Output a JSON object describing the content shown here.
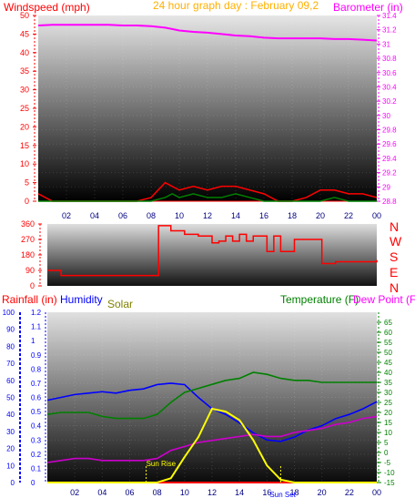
{
  "header": {
    "windspeed_label": "Windspeed (mph)",
    "title": "24 hour graph day : February 09,2",
    "barometer_label": "Barometer (in)"
  },
  "compass": {
    "n": "N",
    "w": "W",
    "s": "S",
    "e": "E",
    "n2": "N"
  },
  "labels_bottom": {
    "rainfall": "Rainfall (in)",
    "humidity": "Humidity",
    "solar": "Solar",
    "temperature": "Temperature (F)",
    "dewpoint": "Dew Point (F)",
    "sunrise": "Sun Rise",
    "sunset": "Sun Set"
  },
  "colors": {
    "wind": "#ff0000",
    "gust": "#008000",
    "barometer": "#ff00ff",
    "direction": "#ff0000",
    "humidity": "#0000ff",
    "temperature": "#008000",
    "dewpoint": "#cc00cc",
    "solar": "#ffff00",
    "rain": "#ff0000",
    "title": "#ffb000"
  },
  "x_ticks": [
    "02",
    "04",
    "06",
    "08",
    "10",
    "12",
    "14",
    "16",
    "18",
    "20",
    "22",
    "00"
  ],
  "chart_data": [
    {
      "type": "line",
      "title": "24 hour graph day : February 09,2",
      "x": [
        0,
        1,
        2,
        3,
        4,
        5,
        6,
        7,
        8,
        9,
        9.5,
        10,
        11,
        12,
        13,
        14,
        15,
        16,
        17,
        18,
        19,
        20,
        21,
        22,
        23,
        24
      ],
      "ylabel": "Windspeed (mph)",
      "y2label": "Barometer (in)",
      "ylim": [
        0,
        50
      ],
      "y2lim": [
        28.8,
        31.4
      ],
      "y_ticks": [
        0,
        5,
        10,
        15,
        20,
        25,
        30,
        35,
        40,
        45,
        50
      ],
      "y2_ticks": [
        "28.8",
        "29",
        "29.2",
        "29.4",
        "29.6",
        "29.8",
        "30",
        "30.2",
        "30.4",
        "30.6",
        "30.8",
        "31",
        "31.2",
        "31.4"
      ],
      "series": [
        {
          "name": "Barometer",
          "axis": "right",
          "values": [
            31.26,
            31.27,
            31.27,
            31.27,
            31.27,
            31.27,
            31.26,
            31.26,
            31.25,
            31.23,
            31.21,
            31.19,
            31.17,
            31.16,
            31.14,
            31.12,
            31.11,
            31.09,
            31.08,
            31.08,
            31.08,
            31.08,
            31.07,
            31.07,
            31.06,
            31.05
          ]
        },
        {
          "name": "Windspeed",
          "axis": "left",
          "values": [
            2,
            0,
            0,
            0,
            0,
            0,
            0,
            0,
            1,
            5,
            4,
            3,
            4,
            3,
            4,
            4,
            3,
            2,
            0,
            0,
            1,
            3,
            3,
            2,
            2,
            1
          ]
        },
        {
          "name": "Gust",
          "axis": "left",
          "values": [
            0,
            0,
            0,
            0,
            0,
            0,
            0,
            0,
            0,
            1,
            2,
            1,
            2,
            1,
            1,
            2,
            1,
            0,
            0,
            0,
            0,
            0,
            1,
            0,
            0,
            0
          ]
        }
      ]
    },
    {
      "type": "line",
      "x": [
        0,
        0.7,
        1,
        8,
        8.1,
        9,
        10,
        11,
        12,
        12.5,
        13,
        13.5,
        14,
        14.5,
        15,
        16,
        16.5,
        17,
        18,
        19,
        20,
        21,
        22,
        23,
        24
      ],
      "ylabel": "Wind Direction",
      "ylim": [
        0,
        360
      ],
      "y_ticks": [
        0,
        90,
        180,
        270,
        360
      ],
      "series": [
        {
          "name": "Direction",
          "values": [
            90,
            90,
            60,
            60,
            350,
            320,
            300,
            290,
            250,
            260,
            290,
            260,
            300,
            260,
            290,
            200,
            290,
            200,
            270,
            270,
            130,
            140,
            140,
            140,
            150
          ]
        }
      ]
    },
    {
      "type": "line",
      "x": [
        0,
        1,
        2,
        3,
        4,
        5,
        6,
        7,
        8,
        9,
        10,
        11,
        12,
        13,
        14,
        15,
        16,
        17,
        18,
        19,
        20,
        21,
        22,
        23,
        24
      ],
      "y_left_rain_lim": [
        0,
        100
      ],
      "y_left_rain_ticks": [
        0,
        10,
        20,
        30,
        40,
        50,
        60,
        70,
        80,
        90,
        100
      ],
      "y_humidity_ticks": [
        "0",
        "0.1",
        "0.2",
        "0.3",
        "0.4",
        "0.5",
        "0.6",
        "0.7",
        "0.8",
        "0.9",
        "1",
        "1.1",
        "1.2"
      ],
      "y_humidity_lim": [
        0,
        1.2
      ],
      "y2lim": [
        -15,
        70
      ],
      "y2_ticks": [
        -15,
        -10,
        -5,
        0,
        5,
        10,
        15,
        20,
        25,
        30,
        35,
        40,
        45,
        50,
        55,
        60,
        65
      ],
      "series": [
        {
          "name": "Humidity",
          "axis": "left",
          "values": [
            0.58,
            0.6,
            0.62,
            0.63,
            0.64,
            0.63,
            0.65,
            0.66,
            0.69,
            0.7,
            0.69,
            0.6,
            0.52,
            0.48,
            0.42,
            0.35,
            0.3,
            0.29,
            0.32,
            0.37,
            0.4,
            0.45,
            0.48,
            0.52,
            0.57
          ]
        },
        {
          "name": "Temperature (F)",
          "axis": "right",
          "values": [
            19,
            20,
            20,
            20,
            18,
            17,
            17,
            17,
            19,
            25,
            30,
            32,
            34,
            36,
            37,
            40,
            39,
            37,
            36,
            36,
            35,
            35,
            35,
            35,
            35
          ]
        },
        {
          "name": "Dew Point (F)",
          "axis": "right",
          "values": [
            -5,
            -4,
            -3,
            -3,
            -4,
            -4,
            -4,
            -4,
            -3,
            1,
            3,
            5,
            6,
            7,
            8,
            9,
            8,
            8,
            10,
            11,
            12,
            14,
            15,
            17,
            18
          ]
        },
        {
          "name": "Solar",
          "axis": "left",
          "values": [
            0,
            0,
            0,
            0,
            0,
            0,
            0,
            0,
            0,
            0.03,
            0.18,
            0.32,
            0.52,
            0.5,
            0.44,
            0.3,
            0.12,
            0.02,
            0,
            0,
            0,
            0,
            0,
            0,
            0
          ]
        },
        {
          "name": "Rainfall (in)",
          "axis": "left",
          "values": [
            0,
            0,
            0,
            0,
            0,
            0,
            0,
            0,
            0,
            0,
            0,
            0,
            0,
            0,
            0,
            0,
            0,
            0,
            0,
            0,
            0,
            0,
            0,
            0,
            0
          ]
        }
      ],
      "annotations": [
        {
          "label": "Sun Rise",
          "x": 7.2
        },
        {
          "label": "Sun Set",
          "x": 17.0
        }
      ]
    }
  ]
}
